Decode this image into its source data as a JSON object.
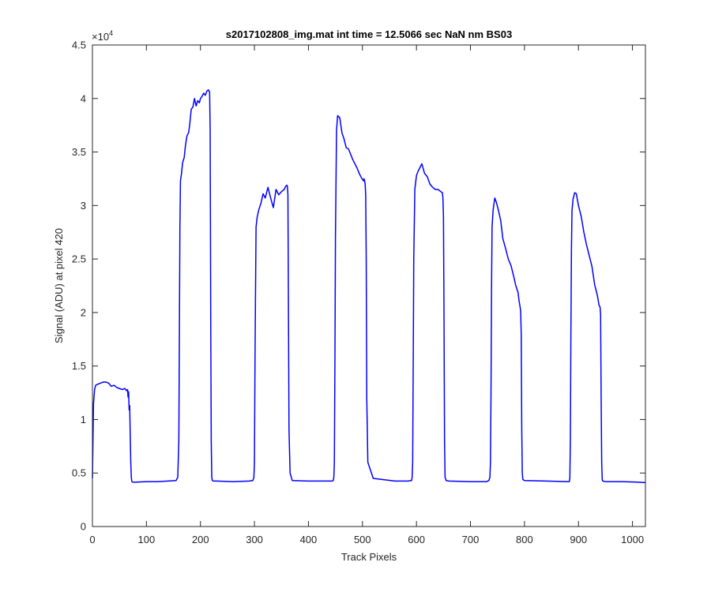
{
  "chart_data": {
    "type": "line",
    "title": "s2017102808_img.mat int time = 12.5066 sec  NaN nm BS03",
    "xlabel": "Track Pixels",
    "ylabel": "Signal (ADU) at pixel 420",
    "y_exponent_label": "×10",
    "y_exponent_power": "4",
    "xlim": [
      0,
      1024
    ],
    "ylim": [
      0,
      45000
    ],
    "grid": false,
    "x_ticks": [
      0,
      100,
      200,
      300,
      400,
      500,
      600,
      700,
      800,
      900,
      1000
    ],
    "x_tick_labels": [
      "0",
      "100",
      "200",
      "300",
      "400",
      "500",
      "600",
      "700",
      "800",
      "900",
      "1000"
    ],
    "y_ticks": [
      0,
      5000,
      10000,
      15000,
      20000,
      25000,
      30000,
      35000,
      40000,
      45000
    ],
    "y_tick_labels": [
      "0",
      "0.5",
      "1",
      "1.5",
      "2",
      "2.5",
      "3",
      "3.5",
      "4",
      "4.5"
    ],
    "series": [
      {
        "color": "#0000ff",
        "x": [
          0,
          2,
          4,
          6,
          10,
          15,
          20,
          25,
          30,
          35,
          40,
          45,
          50,
          55,
          60,
          63,
          65,
          66,
          67,
          68,
          69,
          70,
          71,
          72,
          73,
          75,
          80,
          100,
          120,
          140,
          155,
          158,
          160,
          161,
          162,
          163,
          165,
          167,
          170,
          172,
          175,
          178,
          180,
          183,
          186,
          189,
          192,
          195,
          198,
          200,
          203,
          206,
          209,
          212,
          215,
          217,
          218,
          219,
          220,
          221,
          222,
          224,
          230,
          260,
          290,
          297,
          299,
          300,
          301,
          302,
          303,
          305,
          308,
          312,
          316,
          320,
          325,
          330,
          335,
          340,
          345,
          350,
          355,
          358,
          360,
          361,
          362,
          363,
          364,
          366,
          370,
          400,
          440,
          444,
          446,
          447,
          448,
          449,
          450,
          452,
          454,
          458,
          462,
          466,
          470,
          474,
          478,
          482,
          486,
          490,
          494,
          498,
          502,
          503,
          504,
          505,
          506,
          507,
          508,
          510,
          520,
          560,
          585,
          589,
          591,
          592,
          593,
          594,
          595,
          597,
          600,
          603,
          606,
          610,
          615,
          620,
          625,
          630,
          635,
          640,
          645,
          648,
          649,
          650,
          651,
          652,
          653,
          655,
          660,
          700,
          730,
          734,
          736,
          737,
          738,
          739,
          740,
          742,
          745,
          748,
          752,
          756,
          760,
          765,
          770,
          775,
          780,
          784,
          788,
          790,
          792,
          793,
          794,
          795,
          796,
          797,
          800,
          840,
          880,
          883,
          884,
          885,
          886,
          887,
          888,
          890,
          893,
          896,
          900,
          905,
          910,
          915,
          920,
          925,
          930,
          935,
          938,
          940,
          941,
          942,
          943,
          944,
          945,
          950,
          980,
          1010,
          1024
        ],
        "y": [
          4500,
          11500,
          12800,
          13200,
          13300,
          13400,
          13500,
          13500,
          13400,
          13100,
          13200,
          13000,
          12900,
          12800,
          12900,
          12700,
          12800,
          12100,
          12600,
          10900,
          11300,
          8500,
          6000,
          4600,
          4200,
          4150,
          4150,
          4200,
          4200,
          4250,
          4300,
          4600,
          8000,
          18000,
          28000,
          32300,
          33000,
          34000,
          34500,
          35500,
          36500,
          36800,
          37500,
          39000,
          39200,
          40000,
          39300,
          39800,
          39600,
          40000,
          40200,
          40500,
          40300,
          40700,
          40800,
          40600,
          37000,
          20000,
          8000,
          4600,
          4300,
          4250,
          4250,
          4200,
          4250,
          4300,
          4600,
          6000,
          15000,
          22000,
          28000,
          28900,
          29600,
          30200,
          31100,
          30700,
          31700,
          30700,
          29800,
          31500,
          31000,
          31300,
          31500,
          31800,
          31900,
          31800,
          31000,
          20000,
          9000,
          5000,
          4300,
          4250,
          4250,
          4250,
          4300,
          4600,
          6000,
          15000,
          27000,
          37000,
          38400,
          38200,
          36800,
          36200,
          35400,
          35300,
          34800,
          34300,
          33900,
          33500,
          33000,
          32600,
          32300,
          32500,
          32300,
          32000,
          31000,
          25000,
          12000,
          6000,
          4500,
          4250,
          4250,
          4300,
          4300,
          4600,
          6000,
          15000,
          25000,
          31500,
          32800,
          33200,
          33500,
          33900,
          33000,
          32700,
          32000,
          31700,
          31500,
          31500,
          31300,
          31200,
          30700,
          29000,
          20000,
          8000,
          4600,
          4300,
          4250,
          4200,
          4200,
          4300,
          4600,
          6000,
          12000,
          22000,
          28000,
          29600,
          30700,
          30300,
          29500,
          28600,
          26900,
          26000,
          25000,
          24400,
          23400,
          22500,
          21900,
          21100,
          20500,
          20100,
          18000,
          9000,
          5000,
          4400,
          4300,
          4250,
          4200,
          4200,
          4500,
          8000,
          18000,
          26000,
          29500,
          30600,
          31200,
          31100,
          30000,
          29000,
          27500,
          26300,
          25300,
          24300,
          22600,
          21600,
          20700,
          20500,
          19800,
          12000,
          6000,
          4400,
          4250,
          4200,
          4200,
          4150,
          4100
        ]
      }
    ]
  }
}
